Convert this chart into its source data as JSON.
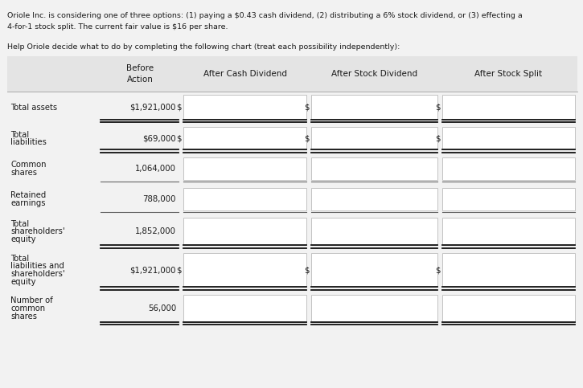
{
  "title_line1": "Oriole Inc. is considering one of three options: (1) paying a $0.43 cash dividend, (2) distributing a 6% stock dividend, or (3) effecting a",
  "title_line2": "4-for-1 stock split. The current fair value is $16 per share.",
  "subtitle": "Help Oriole decide what to do by completing the following chart (treat each possibility independently):",
  "rows": [
    {
      "label": "Total assets",
      "label2": "",
      "label3": "",
      "before": "$1,921,000",
      "has_dollar": true
    },
    {
      "label": "Total",
      "label2": "liabilities",
      "label3": "",
      "before": "$69,000",
      "has_dollar": true
    },
    {
      "label": "Common",
      "label2": "shares",
      "label3": "",
      "before": "1,064,000",
      "has_dollar": false
    },
    {
      "label": "Retained",
      "label2": "earnings",
      "label3": "",
      "before": "788,000",
      "has_dollar": false
    },
    {
      "label": "Total",
      "label2": "shareholders'",
      "label3": "equity",
      "before": "1,852,000",
      "has_dollar": false
    },
    {
      "label": "Total",
      "label2": "liabilities and",
      "label3": "shareholders'",
      "label4": "equity",
      "before": "$1,921,000",
      "has_dollar": true
    },
    {
      "label": "Number of",
      "label2": "common",
      "label3": "shares",
      "before": "56,000",
      "has_dollar": false
    }
  ],
  "double_line_after": [
    0,
    1,
    4,
    5,
    6
  ],
  "single_line_after": [
    2,
    3
  ],
  "bg_color": "#f2f2f2",
  "header_bg": "#e4e4e4",
  "input_bg": "#ffffff",
  "input_border": "#bbbbbb",
  "text_color": "#1a1a1a",
  "line_color_double": "#111111",
  "line_color_single": "#666666"
}
